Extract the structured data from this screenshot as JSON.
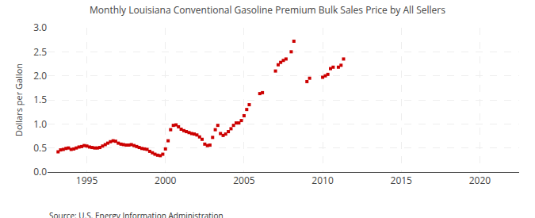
{
  "chart_data": {
    "type": "scatter",
    "title": "Monthly Louisiana Conventional Gasoline Premium Bulk Sales Price by All Sellers",
    "ylabel": "Dollars per Gallon",
    "annotations": [
      "Source: U.S. Energy Information Administration"
    ],
    "color": "#cc0000",
    "marker": "square",
    "grid": true,
    "xlim": [
      1992.5,
      2022.5
    ],
    "ylim": [
      0.0,
      3.0
    ],
    "xticks": [
      1995,
      2000,
      2005,
      2010,
      2015,
      2020
    ],
    "yticks": [
      {
        "value": 0.0,
        "label": "0.0"
      },
      0.5,
      {
        "value": 1.0,
        "label": "1.0"
      },
      1.5,
      {
        "value": 2.0,
        "label": "2.0"
      },
      2.5,
      {
        "value": 3.0,
        "label": "3.0"
      }
    ],
    "x": [
      1993.17,
      1993.33,
      1993.5,
      1993.67,
      1993.83,
      1994.0,
      1994.17,
      1994.33,
      1994.5,
      1994.67,
      1994.83,
      1995.0,
      1995.17,
      1995.33,
      1995.5,
      1995.67,
      1995.83,
      1996.0,
      1996.17,
      1996.33,
      1996.5,
      1996.67,
      1996.83,
      1997.0,
      1997.17,
      1997.33,
      1997.5,
      1997.67,
      1997.83,
      1998.0,
      1998.17,
      1998.33,
      1998.5,
      1998.67,
      1998.83,
      1999.0,
      1999.17,
      1999.33,
      1999.5,
      1999.67,
      1999.83,
      2000.0,
      2000.17,
      2000.33,
      2000.5,
      2000.67,
      2000.83,
      2001.0,
      2001.17,
      2001.33,
      2001.5,
      2001.67,
      2001.83,
      2002.0,
      2002.17,
      2002.33,
      2002.5,
      2002.67,
      2002.83,
      2003.0,
      2003.17,
      2003.33,
      2003.5,
      2003.67,
      2003.83,
      2004.0,
      2004.17,
      2004.33,
      2004.5,
      2004.67,
      2004.83,
      2005.0,
      2005.17,
      2005.33,
      2006.0,
      2006.17,
      2007.0,
      2007.17,
      2007.33,
      2007.5,
      2007.67,
      2008.0,
      2008.17,
      2009.0,
      2009.17,
      2010.0,
      2010.17,
      2010.33,
      2010.5,
      2010.67,
      2011.0,
      2011.17,
      2011.33
    ],
    "values": [
      0.42,
      0.46,
      0.47,
      0.49,
      0.5,
      0.47,
      0.48,
      0.5,
      0.52,
      0.53,
      0.55,
      0.54,
      0.52,
      0.51,
      0.5,
      0.5,
      0.51,
      0.54,
      0.57,
      0.6,
      0.63,
      0.65,
      0.64,
      0.6,
      0.58,
      0.57,
      0.56,
      0.56,
      0.57,
      0.55,
      0.53,
      0.51,
      0.49,
      0.48,
      0.47,
      0.43,
      0.4,
      0.37,
      0.35,
      0.34,
      0.37,
      0.48,
      0.65,
      0.88,
      0.97,
      0.98,
      0.94,
      0.89,
      0.86,
      0.84,
      0.82,
      0.8,
      0.79,
      0.77,
      0.73,
      0.68,
      0.58,
      0.55,
      0.56,
      0.72,
      0.88,
      0.97,
      0.8,
      0.76,
      0.79,
      0.84,
      0.9,
      0.97,
      1.02,
      1.02,
      1.07,
      1.17,
      1.3,
      1.4,
      1.63,
      1.65,
      2.1,
      2.23,
      2.28,
      2.32,
      2.35,
      2.5,
      2.72,
      1.88,
      1.95,
      1.97,
      2.0,
      2.03,
      2.15,
      2.18,
      2.18,
      2.22,
      2.35
    ]
  }
}
